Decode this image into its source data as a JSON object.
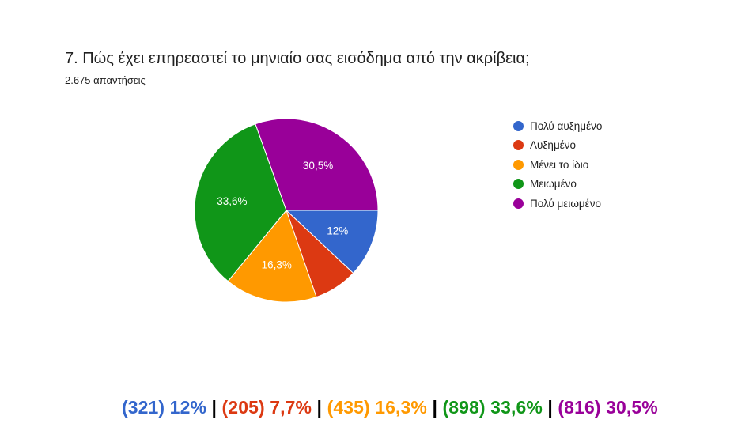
{
  "header": {
    "question": "7. Πώς έχει επηρεαστεί το μηνιαίο σας εισόδημα από την ακρίβεια;",
    "responses": "2.675 απαντήσεις"
  },
  "chart_data": {
    "type": "pie",
    "title": "7. Πώς έχει επηρεαστεί το μηνιαίο σας εισόδημα από την ακρίβεια;",
    "legend_position": "right",
    "categories": [
      "Πολύ αυξημένο",
      "Αυξημένο",
      "Μένει το ίδιο",
      "Μειωμένο",
      "Πολύ μειωμένο"
    ],
    "values": [
      12,
      7.7,
      16.3,
      33.6,
      30.5
    ],
    "slice_labels": [
      "12%",
      "",
      "16,3%",
      "33,6%",
      "30,5%"
    ],
    "colors": [
      "#3366cc",
      "#dc3912",
      "#ff9900",
      "#109618",
      "#990099"
    ]
  },
  "summary": [
    {
      "text": "(321) 12%",
      "color": "#3366cc"
    },
    {
      "text": "(205) 7,7%",
      "color": "#dc3912"
    },
    {
      "text": "(435) 16,3%",
      "color": "#ff9900"
    },
    {
      "text": "(898) 33,6%",
      "color": "#109618"
    },
    {
      "text": "(816) 30,5%",
      "color": "#990099"
    }
  ],
  "separator": " | "
}
